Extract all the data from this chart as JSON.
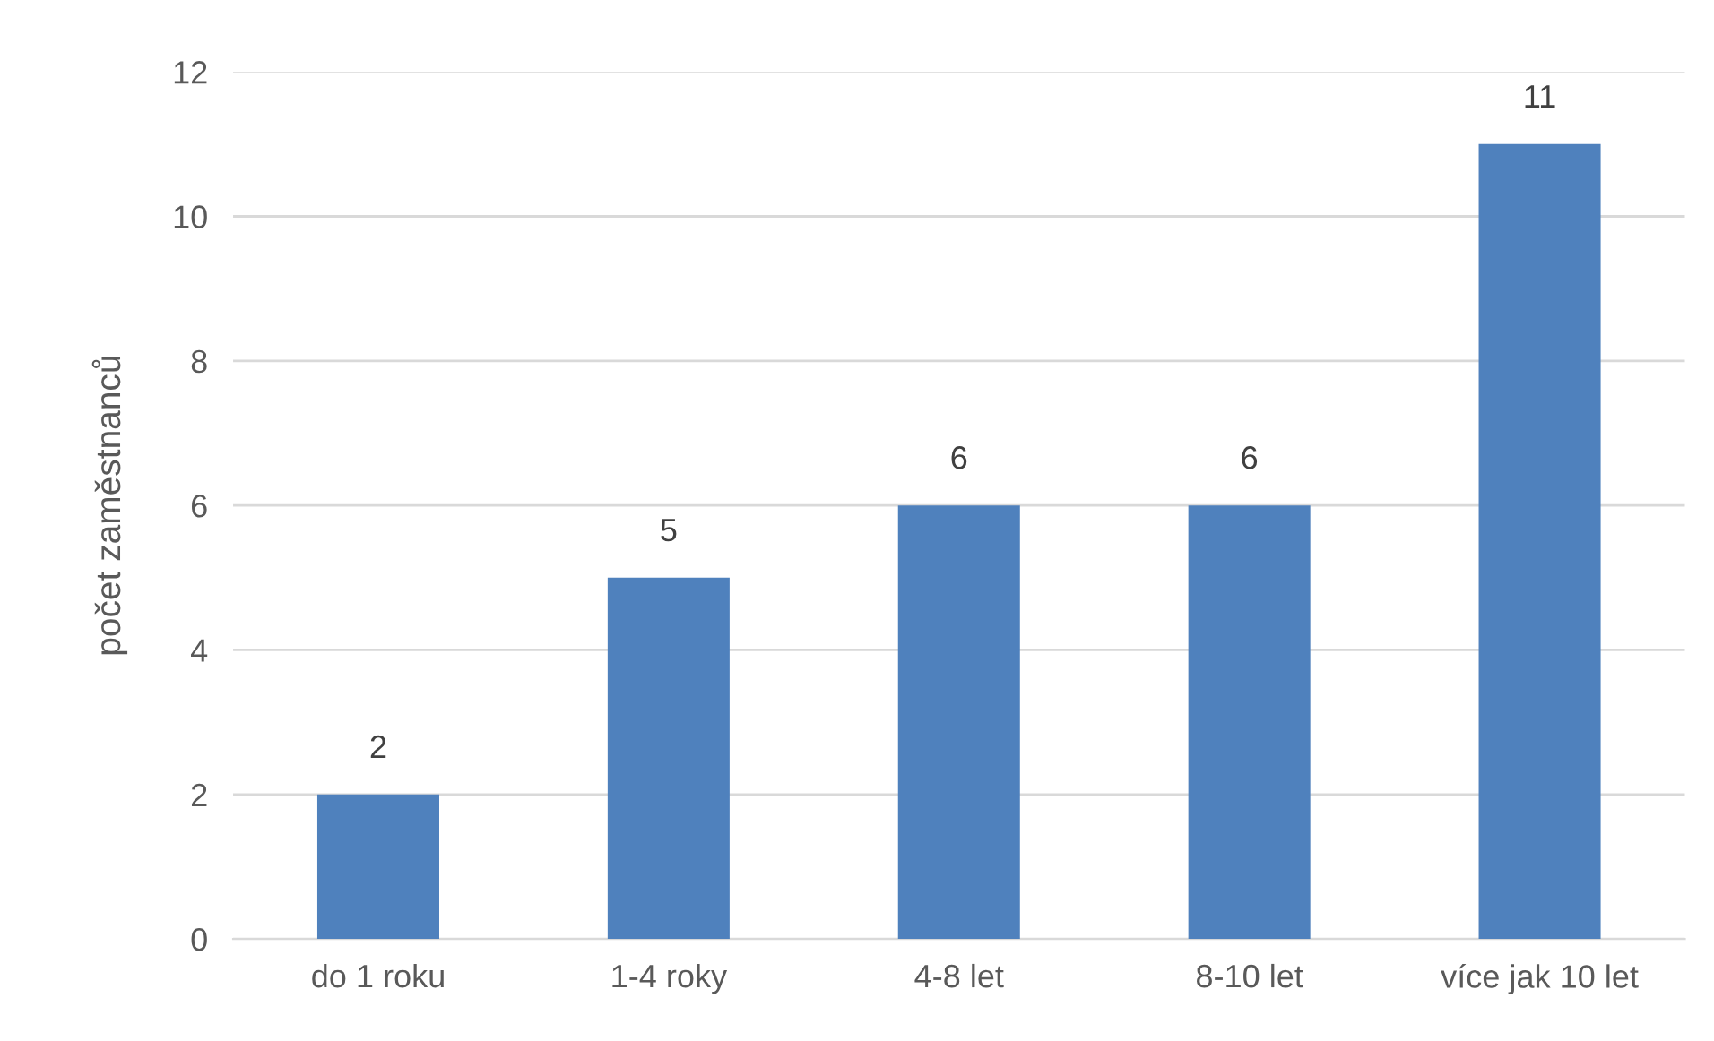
{
  "chart_data": {
    "type": "bar",
    "ylabel": "počet zaměstnanců",
    "categories": [
      "do 1 roku",
      "1-4 roky",
      "4-8 let",
      "8-10 let",
      "více jak 10 let"
    ],
    "values": [
      2,
      5,
      6,
      6,
      11
    ],
    "color": "#4f81bd",
    "ylim": [
      0,
      12
    ],
    "yticks": [
      0,
      2,
      4,
      6,
      8,
      10,
      12
    ],
    "grid": "y",
    "data_labels": true
  }
}
